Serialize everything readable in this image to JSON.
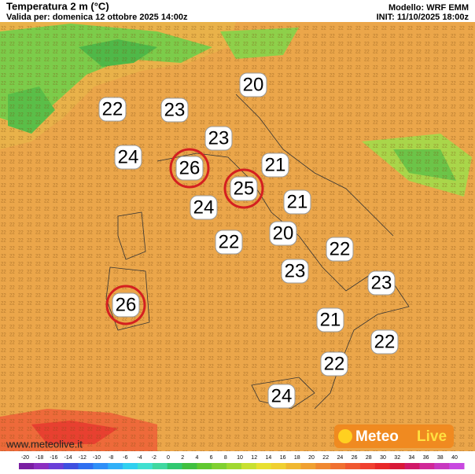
{
  "header": {
    "title": "Temperatura 2 m (°C)",
    "valid": "Valida per: domenica 12 ottobre 2025 14:00z",
    "model": "Modello: WRF EMM",
    "init": "INIT: 11/10/2025 18:00z"
  },
  "labels": [
    {
      "text": "20"
    },
    {
      "text": "22"
    },
    {
      "text": "23"
    },
    {
      "text": "23"
    },
    {
      "text": "24"
    },
    {
      "text": "26",
      "circled": true
    },
    {
      "text": "21"
    },
    {
      "text": "25",
      "circled": true
    },
    {
      "text": "21"
    },
    {
      "text": "24"
    },
    {
      "text": "20"
    },
    {
      "text": "22"
    },
    {
      "text": "22"
    },
    {
      "text": "23"
    },
    {
      "text": "23"
    },
    {
      "text": "26",
      "circled": true
    },
    {
      "text": "21"
    },
    {
      "text": "22"
    },
    {
      "text": "22"
    },
    {
      "text": "24"
    }
  ],
  "colorbar": {
    "ticks": [
      -20,
      -18,
      -16,
      -14,
      -12,
      -10,
      -8,
      -6,
      -4,
      -2,
      0,
      2,
      4,
      6,
      8,
      10,
      12,
      14,
      16,
      18,
      20,
      22,
      24,
      26,
      28,
      30,
      32,
      34,
      36,
      38,
      40
    ],
    "colors": [
      "#7a1fa2",
      "#8c2fc0",
      "#6a3fd8",
      "#3f4fe0",
      "#2f6ff0",
      "#2f8ff8",
      "#30b0f8",
      "#30d0f0",
      "#40e0d0",
      "#40d8a0",
      "#30c870",
      "#40c040",
      "#60c830",
      "#80d030",
      "#a0d830",
      "#c8e030",
      "#e8e030",
      "#f0d030",
      "#f0b830",
      "#f0a030",
      "#f08830",
      "#f07030",
      "#f05830",
      "#f04030",
      "#e82828",
      "#d81838",
      "#d01868",
      "#d02898",
      "#c838c0",
      "#c848e0"
    ]
  },
  "footer": {
    "site": "www.meteolive.it",
    "logo_a": "Meteo",
    "logo_b": "Live"
  }
}
